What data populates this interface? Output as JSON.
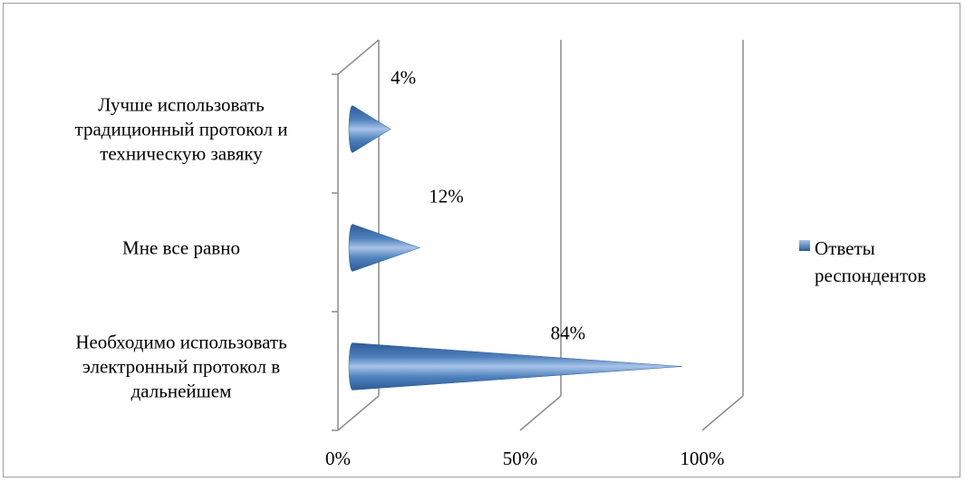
{
  "chart_data": {
    "type": "bar",
    "subtype": "3d-cone-horizontal",
    "title": "",
    "xlabel": "",
    "ylabel": "",
    "categories": [
      [
        "Лучше использовать",
        "традиционный протокол и",
        "техническую завяку"
      ],
      [
        "Мне все равно"
      ],
      [
        "Необходимо использовать",
        "электронный протокол в",
        "дальнейшем"
      ]
    ],
    "series": [
      {
        "name": "Ответы респондентов",
        "values": [
          0.04,
          0.12,
          0.84
        ]
      }
    ],
    "data_labels": [
      "4%",
      "12%",
      "84%"
    ],
    "xlim": [
      0,
      1
    ],
    "x_ticks": [
      "0%",
      "50%",
      "100%"
    ],
    "legend": {
      "position": "right",
      "lines": [
        "Ответы",
        "респондентов"
      ]
    },
    "grid": true,
    "colors": {
      "series": "#4f81bd",
      "series_dark": "#2c5b96",
      "series_light": "#a7c4e8",
      "axis": "#8c8c8c"
    }
  }
}
